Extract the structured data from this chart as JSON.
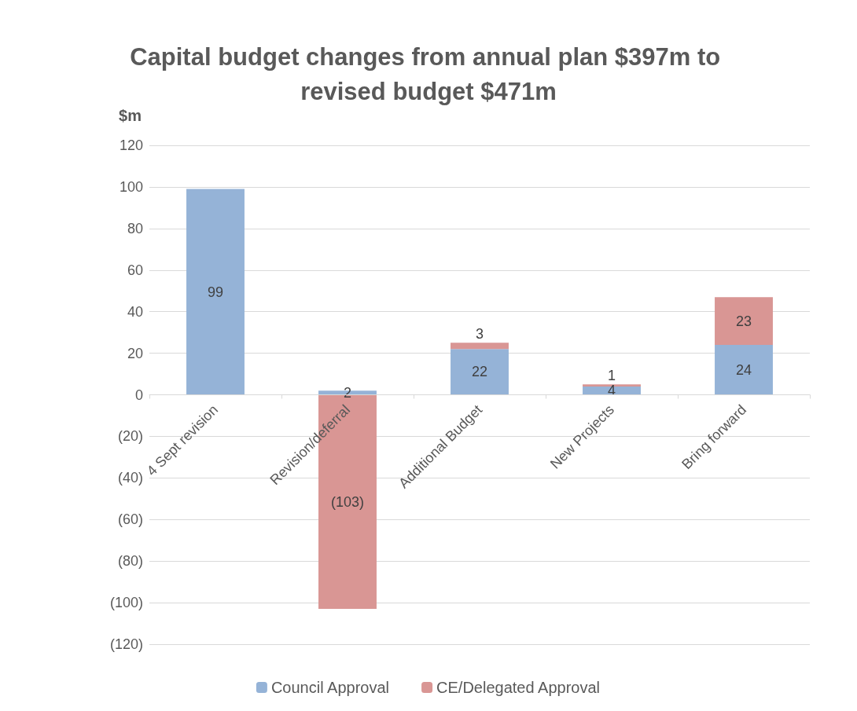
{
  "chart_data": {
    "type": "bar",
    "title": "Capital budget changes from annual plan $397m to revised budget $471m",
    "ylabel": "$m",
    "categories": [
      "4 Sept revision",
      "Revision/deferral",
      "Additional Budget",
      "New Projects",
      "Bring forward"
    ],
    "stacked": true,
    "series": [
      {
        "name": "Council Approval",
        "color": "#95b3d7",
        "values": [
          99,
          2,
          22,
          4,
          24
        ],
        "value_labels": [
          "99",
          "2",
          "22",
          "4",
          "24"
        ]
      },
      {
        "name": "CE/Delegated Approval",
        "color": "#d99694",
        "values": [
          null,
          -103,
          3,
          1,
          23
        ],
        "value_labels": [
          null,
          "(103)",
          "3",
          "1",
          "23"
        ]
      }
    ],
    "ylim": [
      -120,
      120
    ],
    "yticks": [
      {
        "value": -120,
        "label": "(120)"
      },
      {
        "value": -100,
        "label": "(100)"
      },
      {
        "value": -80,
        "label": "(80)"
      },
      {
        "value": -60,
        "label": "(60)"
      },
      {
        "value": -40,
        "label": "(40)"
      },
      {
        "value": -20,
        "label": "(20)"
      },
      0,
      20,
      40,
      60,
      80,
      100,
      120
    ],
    "grid": "y",
    "legend": "bottom"
  }
}
